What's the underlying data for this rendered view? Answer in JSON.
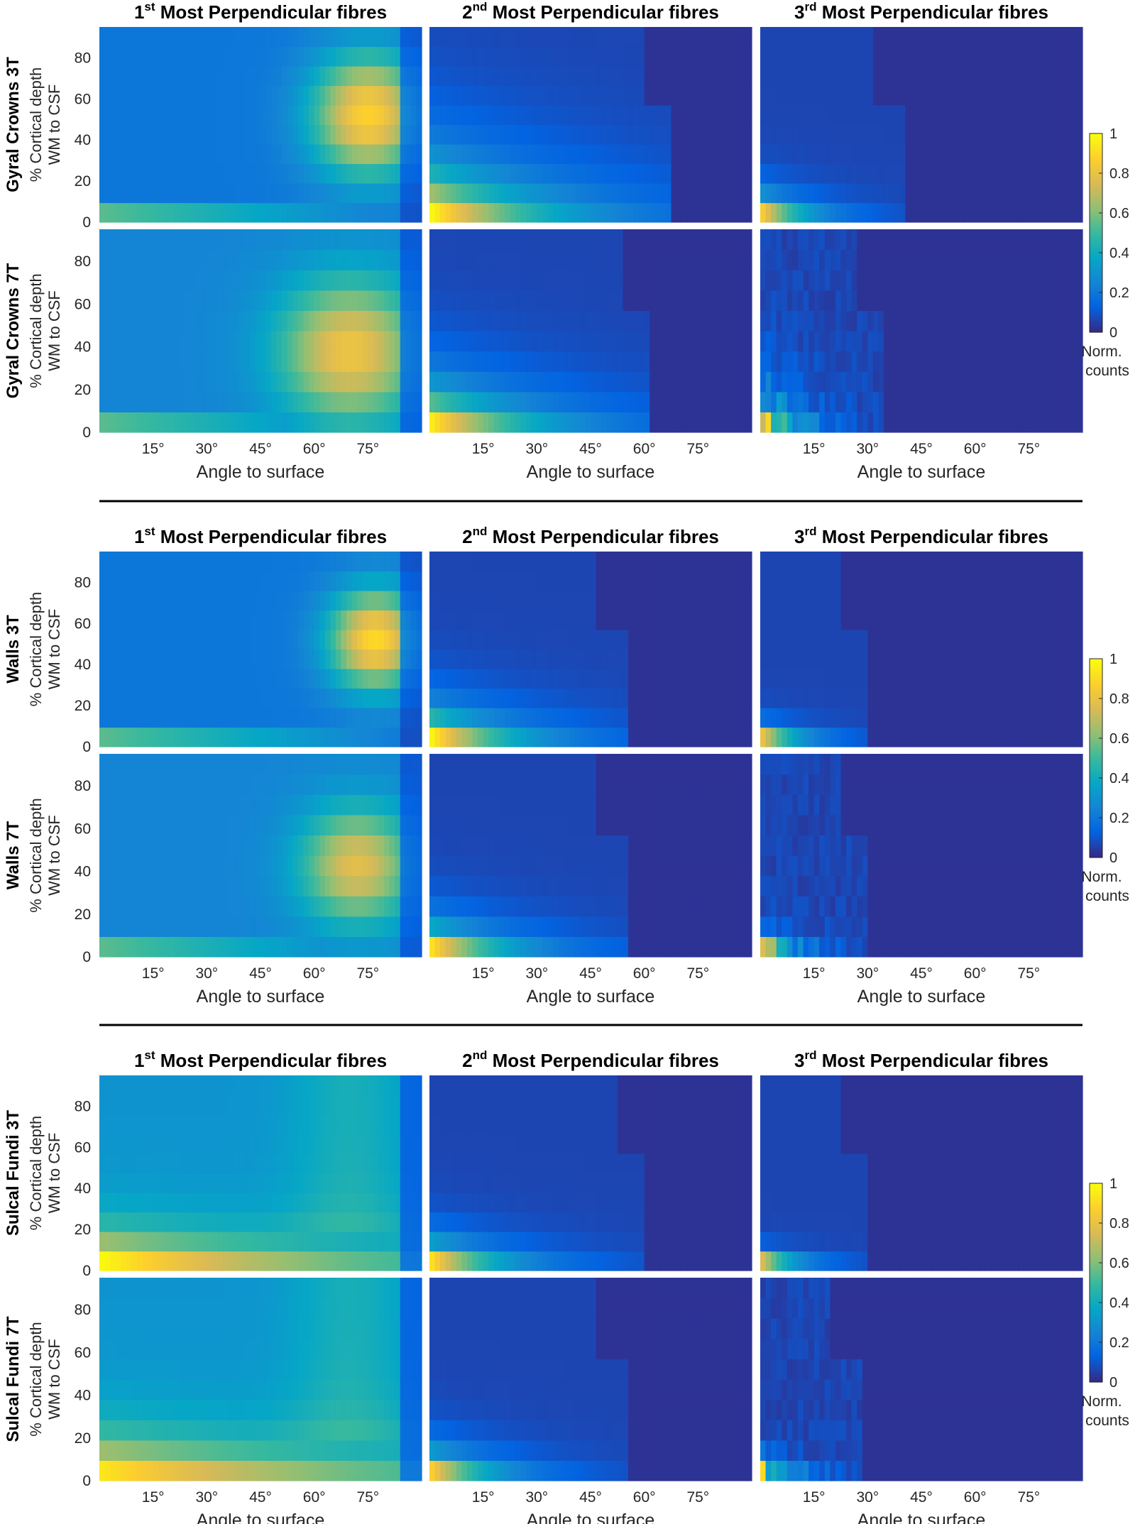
{
  "titles": [
    {
      "ord": "1",
      "sup": "st",
      "rest": " Most Perpendicular fibres"
    },
    {
      "ord": "2",
      "sup": "nd",
      "rest": " Most Perpendicular fibres"
    },
    {
      "ord": "3",
      "sup": "rd",
      "rest": " Most Perpendicular fibres"
    }
  ],
  "ylabel_line1": "% Cortical depth",
  "ylabel_line2": "WM to CSF",
  "xlabel": "Angle to surface",
  "xticks": [
    "15°",
    "30°",
    "45°",
    "60°",
    "75°"
  ],
  "yticks": [
    "0",
    "20",
    "40",
    "60",
    "80"
  ],
  "colorbar": {
    "ticks": [
      "0",
      "0.2",
      "0.4",
      "0.6",
      "0.8",
      "1"
    ],
    "label_line1": "Norm.",
    "label_line2": "counts",
    "colormap": "parula",
    "colors": [
      "#352a87",
      "#0363e1",
      "#1485d4",
      "#06a7c6",
      "#38b99e",
      "#92bf73",
      "#d9ba56",
      "#fcce2e",
      "#f9fb0e"
    ]
  },
  "groups": [
    {
      "rows": [
        "Gyral Crowns 3T",
        "Gyral Crowns 7T"
      ]
    },
    {
      "rows": [
        "Walls 3T",
        "Walls 7T"
      ]
    },
    {
      "rows": [
        "Sulcal Fundi 3T",
        "Sulcal Fundi 7T"
      ]
    }
  ],
  "chart_data": {
    "type": "heatmap",
    "description_of_axes": "x = angle to surface (degrees, 0-90), y = % cortical depth WM to CSF (0-95, bins of 10), value = normalized counts (0-1)",
    "x_range": [
      0,
      90
    ],
    "y_range": [
      0,
      95
    ],
    "y_bin_centers": [
      0,
      10,
      20,
      30,
      40,
      50,
      60,
      70,
      80,
      90
    ],
    "clim": [
      0,
      1
    ],
    "panels": [
      {
        "row": "Gyral Crowns 3T",
        "col": 1,
        "model": "perp",
        "peak_angle": 75,
        "sigma_angle": 11,
        "peak_depth": 50,
        "sigma_depth": 22,
        "base": 0.2,
        "peak": 0.88
      },
      {
        "row": "Gyral Crowns 3T",
        "col": 2,
        "model": "decay",
        "y0": 0.95,
        "depth_decay": 22,
        "angle_decay": 32,
        "cutoff": 68
      },
      {
        "row": "Gyral Crowns 3T",
        "col": 3,
        "model": "decay",
        "y0": 0.85,
        "depth_decay": 8,
        "angle_decay": 12,
        "cutoff": 40
      },
      {
        "row": "Gyral Crowns 7T",
        "col": 1,
        "model": "perp",
        "peak_angle": 70,
        "sigma_angle": 14,
        "peak_depth": 35,
        "sigma_depth": 25,
        "base": 0.25,
        "peak": 0.82
      },
      {
        "row": "Gyral Crowns 7T",
        "col": 2,
        "model": "decay",
        "y0": 0.92,
        "depth_decay": 16,
        "angle_decay": 28,
        "cutoff": 62
      },
      {
        "row": "Gyral Crowns 7T",
        "col": 3,
        "model": "decay",
        "y0": 0.75,
        "depth_decay": 14,
        "angle_decay": 9,
        "cutoff": 35,
        "noisy": true
      },
      {
        "row": "Walls 3T",
        "col": 1,
        "model": "perp",
        "peak_angle": 77,
        "sigma_angle": 9,
        "peak_depth": 50,
        "sigma_depth": 18,
        "base": 0.2,
        "peak": 0.9
      },
      {
        "row": "Walls 3T",
        "col": 2,
        "model": "decay",
        "y0": 0.95,
        "depth_decay": 12,
        "angle_decay": 22,
        "cutoff": 55
      },
      {
        "row": "Walls 3T",
        "col": 3,
        "model": "decay",
        "y0": 0.8,
        "depth_decay": 5,
        "angle_decay": 10,
        "cutoff": 30
      },
      {
        "row": "Walls 7T",
        "col": 1,
        "model": "perp",
        "peak_angle": 72,
        "sigma_angle": 11,
        "peak_depth": 40,
        "sigma_depth": 20,
        "base": 0.25,
        "peak": 0.78
      },
      {
        "row": "Walls 7T",
        "col": 2,
        "model": "decay",
        "y0": 0.9,
        "depth_decay": 10,
        "angle_decay": 20,
        "cutoff": 55
      },
      {
        "row": "Walls 7T",
        "col": 3,
        "model": "decay",
        "y0": 0.7,
        "depth_decay": 6,
        "angle_decay": 8,
        "cutoff": 30,
        "noisy": true
      },
      {
        "row": "Sulcal Fundi 3T",
        "col": 1,
        "model": "fundi",
        "y0": 1.0,
        "depth_decay": 14,
        "angle_decay": 70,
        "base": 0.3
      },
      {
        "row": "Sulcal Fundi 3T",
        "col": 2,
        "model": "decay",
        "y0": 0.9,
        "depth_decay": 9,
        "angle_decay": 18,
        "cutoff": 60
      },
      {
        "row": "Sulcal Fundi 3T",
        "col": 3,
        "model": "decay",
        "y0": 0.75,
        "depth_decay": 4,
        "angle_decay": 9,
        "cutoff": 30
      },
      {
        "row": "Sulcal Fundi 7T",
        "col": 1,
        "model": "fundi",
        "y0": 0.95,
        "depth_decay": 16,
        "angle_decay": 80,
        "base": 0.3
      },
      {
        "row": "Sulcal Fundi 7T",
        "col": 2,
        "model": "decay",
        "y0": 0.85,
        "depth_decay": 9,
        "angle_decay": 16,
        "cutoff": 55
      },
      {
        "row": "Sulcal Fundi 7T",
        "col": 3,
        "model": "decay",
        "y0": 0.65,
        "depth_decay": 5,
        "angle_decay": 8,
        "cutoff": 28,
        "noisy": true
      }
    ]
  }
}
